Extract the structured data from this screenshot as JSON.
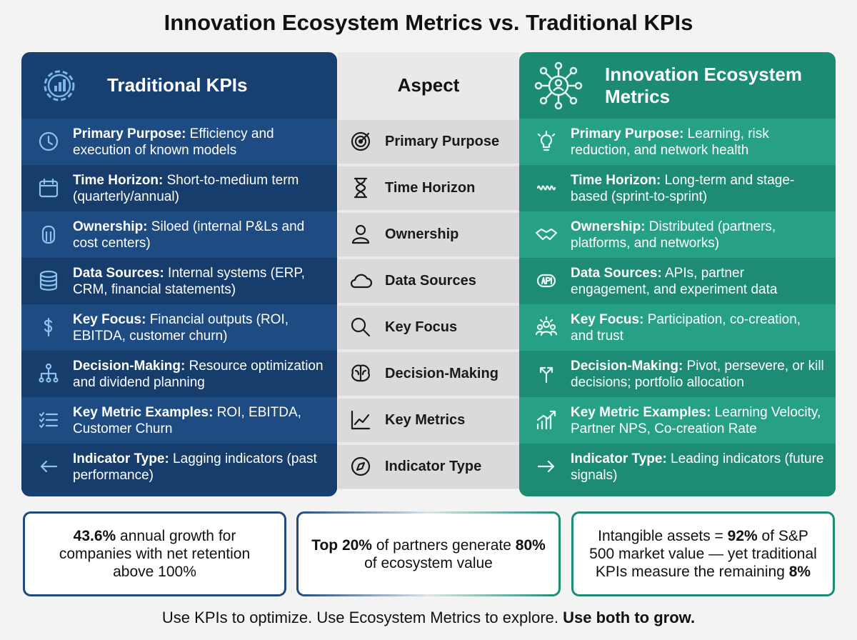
{
  "title": "Innovation Ecosystem Metrics vs. Traditional KPIs",
  "traditional": {
    "heading": "Traditional KPIs",
    "rows": [
      {
        "label": "Primary Purpose:",
        "text": " Efficiency and execution of known models"
      },
      {
        "label": "Time Horizon:",
        "text": " Short-to-medium term (quarterly/annual)"
      },
      {
        "label": "Ownership:",
        "text": " Siloed (internal P&Ls and cost centers)"
      },
      {
        "label": "Data Sources:",
        "text": " Internal systems (ERP, CRM, financial statements)"
      },
      {
        "label": "Key Focus:",
        "text": " Financial outputs (ROI, EBITDA, customer churn)"
      },
      {
        "label": "Decision-Making:",
        "text": " Resource optimization and dividend planning"
      },
      {
        "label": "Key Metric Examples:",
        "text": " ROI, EBITDA, Customer Churn"
      },
      {
        "label": "Indicator Type:",
        "text": " Lagging indicators (past performance)"
      }
    ]
  },
  "aspect": {
    "heading": "Aspect",
    "rows": [
      "Primary Purpose",
      "Time Horizon",
      "Ownership",
      "Data Sources",
      "Key Focus",
      "Decision-Making",
      "Key Metrics",
      "Indicator Type"
    ]
  },
  "ecosystem": {
    "heading": "Innovation Ecosystem Metrics",
    "rows": [
      {
        "label": "Primary Purpose:",
        "text": " Learning, risk reduction, and network health"
      },
      {
        "label": "Time Horizon:",
        "text": " Long-term and stage-based (sprint-to-sprint)"
      },
      {
        "label": "Ownership:",
        "text": " Distributed (partners, platforms, and networks)"
      },
      {
        "label": "Data Sources:",
        "text": " APIs, partner engagement, and experiment data"
      },
      {
        "label": "Key Focus:",
        "text": " Participation, co-creation, and trust"
      },
      {
        "label": "Decision-Making:",
        "text": " Pivot, persevere, or kill decisions; portfolio allocation"
      },
      {
        "label": "Key Metric Examples:",
        "text": " Learning Velocity, Partner NPS, Co-creation Rate"
      },
      {
        "label": "Indicator Type:",
        "text": " Leading indicators (future signals)"
      }
    ]
  },
  "stats": [
    {
      "parts": [
        {
          "text": "43.6%",
          "bold": true
        },
        {
          "text": " annual growth for companies with net retention above 100%",
          "bold": false
        }
      ]
    },
    {
      "parts": [
        {
          "text": "Top 20%",
          "bold": true
        },
        {
          "text": " of partners generate ",
          "bold": false
        },
        {
          "text": "80%",
          "bold": true
        },
        {
          "text": " of ecosystem value",
          "bold": false
        }
      ]
    },
    {
      "parts": [
        {
          "text": "Intangible assets = ",
          "bold": false
        },
        {
          "text": "92%",
          "bold": true
        },
        {
          "text": " of S&P 500 market value — yet traditional KPIs measure the remaining ",
          "bold": false
        },
        {
          "text": "8%",
          "bold": true
        }
      ]
    }
  ],
  "footer": {
    "parts": [
      {
        "text": "Use KPIs to optimize. Use Ecosystem Metrics to explore. ",
        "bold": false
      },
      {
        "text": "Use both to grow.",
        "bold": true
      }
    ]
  }
}
